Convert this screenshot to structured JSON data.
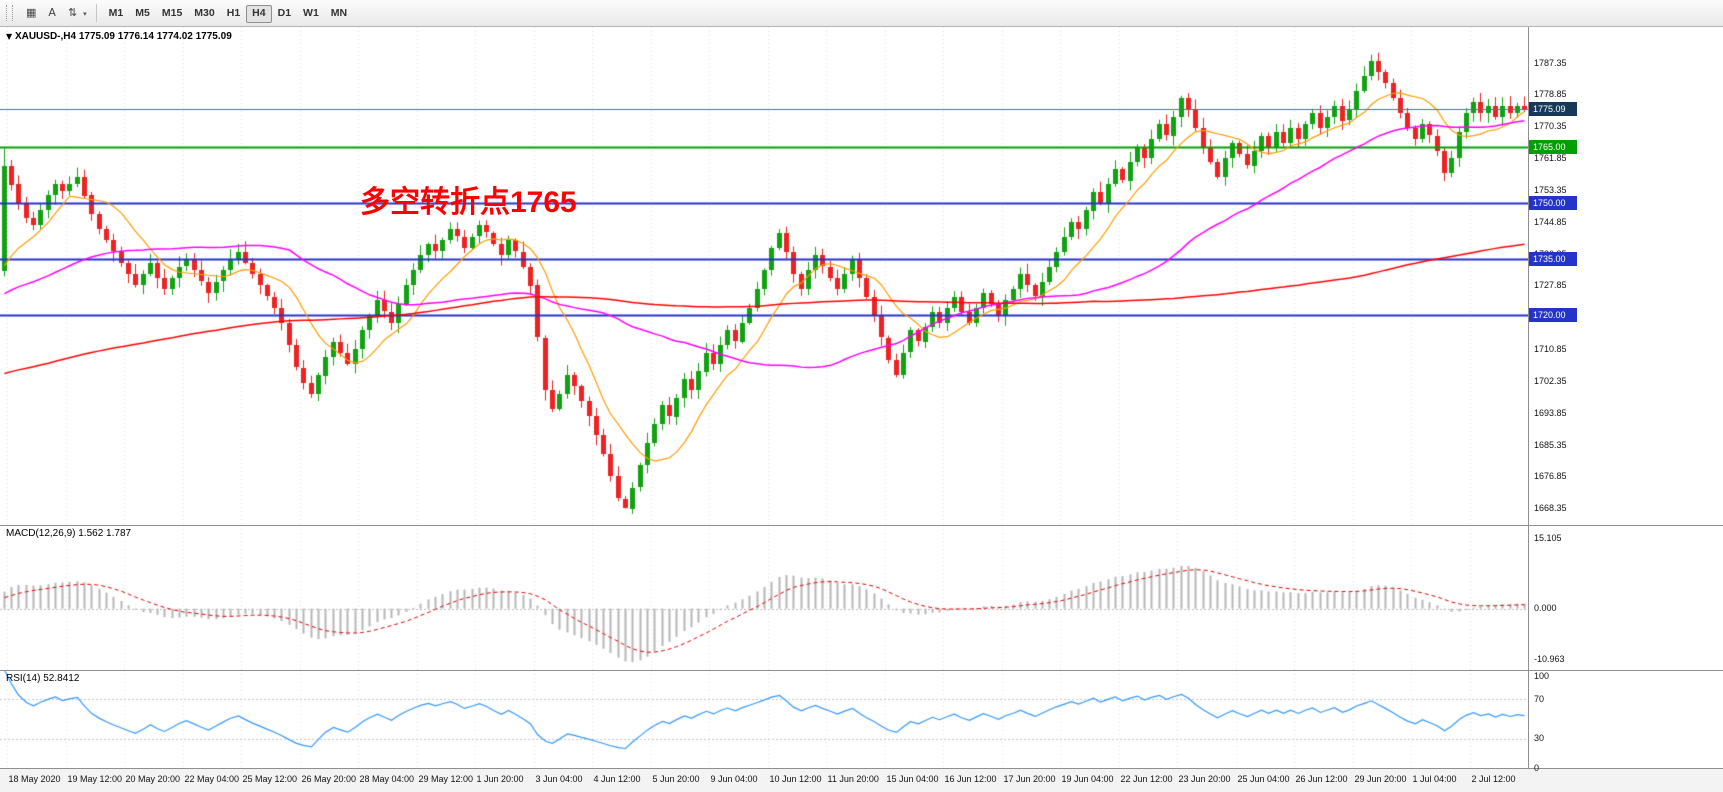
{
  "toolbar": {
    "icons": [
      {
        "name": "chart-window-icon",
        "glyph": "▦",
        "caret": false
      },
      {
        "name": "text-tool-icon",
        "glyph": "A",
        "caret": false
      },
      {
        "name": "scale-tool-icon",
        "glyph": "⇅",
        "caret": true
      }
    ],
    "timeframes": [
      "M1",
      "M5",
      "M15",
      "M30",
      "H1",
      "H4",
      "D1",
      "W1",
      "MN"
    ],
    "active_timeframe": "H4"
  },
  "chart_data": {
    "type": "candlestick",
    "symbol": "XAUUSD-",
    "timeframe": "H4",
    "title_marker": "▼",
    "title_symbol": "XAUUSD-,H4",
    "title_ohlc": "1775.09 1776.14 1774.02 1775.09",
    "up_color": "#11a211",
    "down_color": "#ee2222",
    "first_open": 1732,
    "closes": [
      1760,
      1755,
      1750,
      1746,
      1744,
      1748,
      1752,
      1755,
      1753,
      1755,
      1757,
      1752,
      1747,
      1743,
      1740,
      1737,
      1734,
      1731,
      1728,
      1731,
      1734,
      1730,
      1727,
      1730,
      1733,
      1735,
      1732,
      1729,
      1726,
      1729,
      1732,
      1735,
      1737,
      1734,
      1731,
      1728,
      1725,
      1722,
      1718,
      1712,
      1706,
      1702,
      1699,
      1704,
      1709,
      1713,
      1710,
      1707,
      1711,
      1716,
      1720,
      1724,
      1721,
      1718,
      1723,
      1728,
      1732,
      1736,
      1739,
      1737,
      1740,
      1743,
      1741,
      1738,
      1741,
      1744,
      1742,
      1739,
      1736,
      1740,
      1737,
      1733,
      1728,
      1714,
      1700,
      1695,
      1699,
      1704,
      1701,
      1697,
      1693,
      1688,
      1683,
      1677,
      1671,
      1668.5,
      1674,
      1680,
      1686,
      1691,
      1696,
      1693,
      1698,
      1703,
      1700,
      1705,
      1710,
      1707,
      1712,
      1716,
      1713,
      1718,
      1722,
      1727,
      1732,
      1738,
      1742,
      1737,
      1731,
      1727,
      1732,
      1736,
      1733,
      1730,
      1727,
      1731,
      1735,
      1730,
      1725,
      1720,
      1714,
      1708,
      1704,
      1710,
      1716,
      1713,
      1717,
      1721,
      1718,
      1722,
      1725,
      1721,
      1718,
      1722,
      1726,
      1723,
      1720,
      1724,
      1727,
      1731,
      1728,
      1725,
      1729,
      1733,
      1737,
      1741,
      1745,
      1743,
      1748,
      1753,
      1750,
      1755,
      1759,
      1756,
      1761,
      1765,
      1762,
      1767,
      1771,
      1768,
      1773,
      1778,
      1775,
      1770,
      1765,
      1761,
      1757,
      1762,
      1766,
      1763,
      1760,
      1764,
      1768,
      1765,
      1769,
      1766,
      1770,
      1767,
      1771,
      1774,
      1770,
      1773,
      1776,
      1772,
      1775,
      1780,
      1784,
      1788,
      1785,
      1782,
      1778,
      1774,
      1770,
      1767,
      1771,
      1768,
      1764,
      1758,
      1762,
      1769,
      1774,
      1777,
      1774,
      1776,
      1773,
      1776,
      1774,
      1776,
      1775.09
    ],
    "wick_overrides": {
      "0": {
        "high": 1764.6
      },
      "85": {
        "low": 1668.4
      },
      "187": {
        "high": 1789.6
      },
      "197": {
        "low": 1755.8
      }
    },
    "price_axis": {
      "min": 1664,
      "max": 1797,
      "labels": [
        "1787.35",
        "1778.85",
        "1770.35",
        "1761.85",
        "1753.35",
        "1744.85",
        "1736.35",
        "1727.85",
        "1719.35",
        "1710.85",
        "1702.35",
        "1693.85",
        "1685.35",
        "1676.85",
        "1668.35"
      ]
    },
    "hlines": [
      {
        "name": "bid-price-line",
        "price": 1775.09,
        "label": "1775.09",
        "color": "#3f76a0",
        "badge": "#16395a",
        "width": 1,
        "on_top": true
      },
      {
        "name": "hline-1765",
        "price": 1765.0,
        "label": "1765.00",
        "color": "#00a000",
        "badge": "#00a000",
        "width": 2,
        "on_top": false
      },
      {
        "name": "hline-1750",
        "price": 1750.0,
        "label": "1750.00",
        "color": "#2433cc",
        "badge": "#2433cc",
        "width": 2,
        "on_top": false
      },
      {
        "name": "hline-1735",
        "price": 1735.0,
        "label": "1735.00",
        "color": "#2433cc",
        "badge": "#2433cc",
        "width": 2,
        "on_top": false
      },
      {
        "name": "hline-1720",
        "price": 1720.0,
        "label": "1720.00",
        "color": "#2433cc",
        "badge": "#2433cc",
        "width": 2,
        "on_top": false
      }
    ],
    "annotation": {
      "text": "多空转折点1765",
      "color": "#ff0000"
    },
    "moving_averages": [
      {
        "period": 10,
        "color": "#ff9c00",
        "width": 1.2
      },
      {
        "period": 40,
        "color": "#ff00ff",
        "width": 1.5
      },
      {
        "period": 150,
        "color": "#ff0000",
        "width": 1.5
      }
    ],
    "macd": {
      "label": "MACD(12,26,9)",
      "values": "1.562 1.787",
      "scale": [
        15.105,
        0,
        -10.963
      ],
      "scale_labels": [
        "15.105",
        "0.000",
        "-10.963"
      ],
      "range": [
        -13.2,
        18
      ],
      "hist_color": "#b6b6b6",
      "signal_color": "#e00000"
    },
    "rsi": {
      "label": "RSI(14)",
      "value": "52.8412",
      "levels": [
        100,
        70,
        30,
        0
      ],
      "scale_labels": [
        "100",
        "70",
        "30",
        "0"
      ],
      "level_lines": [
        70,
        30
      ],
      "line_color": "#3399ff"
    },
    "time_labels": [
      "18 May 2020",
      "19 May 12:00",
      "20 May 20:00",
      "22 May 04:00",
      "25 May 12:00",
      "26 May 20:00",
      "28 May 04:00",
      "29 May 12:00",
      "1 Jun 20:00",
      "3 Jun 04:00",
      "4 Jun 12:00",
      "5 Jun 20:00",
      "9 Jun 04:00",
      "10 Jun 12:00",
      "11 Jun 20:00",
      "15 Jun 04:00",
      "16 Jun 12:00",
      "17 Jun 20:00",
      "19 Jun 04:00",
      "22 Jun 12:00",
      "23 Jun 20:00",
      "25 Jun 04:00",
      "26 Jun 12:00",
      "29 Jun 20:00",
      "1 Jul 04:00",
      "2 Jul 12:00"
    ]
  }
}
